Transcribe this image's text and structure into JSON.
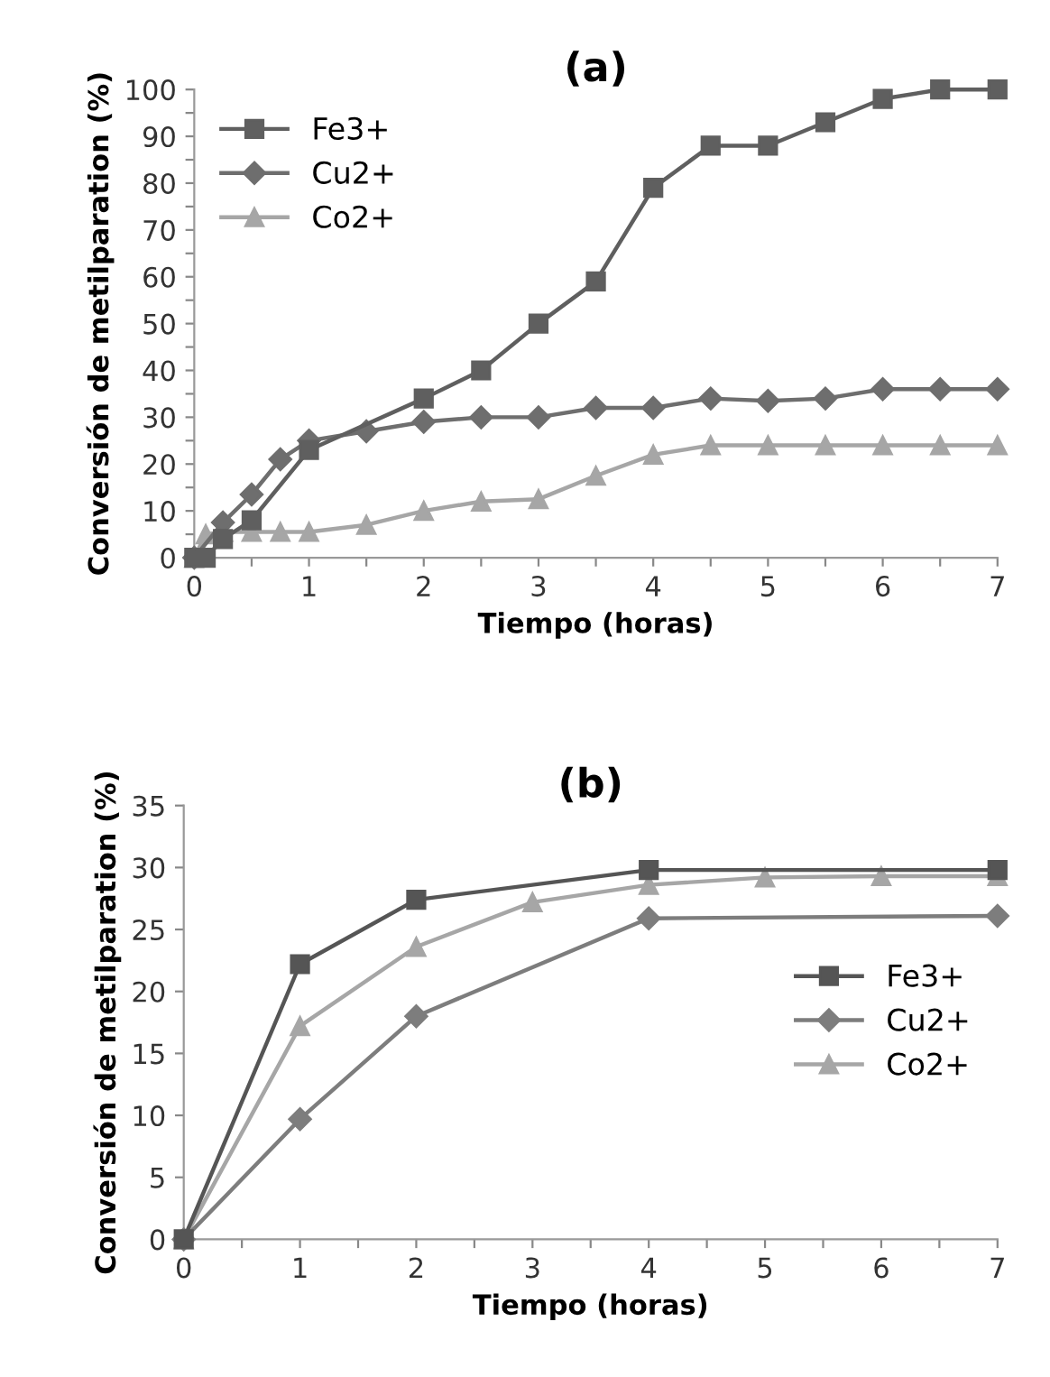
{
  "chart_data": [
    {
      "type": "line",
      "title": "(a)",
      "xlabel": "Tiempo (horas)",
      "ylabel": "Conversión de metilparation (%)",
      "xlim": [
        0,
        7
      ],
      "xticks": [
        0,
        {
          "value": 0.5,
          "label": null
        },
        1,
        {
          "value": 1.5,
          "label": null
        },
        2,
        {
          "value": 2.5,
          "label": null
        },
        3,
        {
          "value": 3.5,
          "label": null
        },
        4,
        {
          "value": 4.5,
          "label": null
        },
        5,
        {
          "value": 5.5,
          "label": null
        },
        6,
        {
          "value": 6.5,
          "label": null
        },
        7
      ],
      "ylim": [
        0,
        100
      ],
      "yticks": [
        0,
        {
          "value": 5,
          "label": null
        },
        10,
        {
          "value": 15,
          "label": null
        },
        20,
        {
          "value": 25,
          "label": null
        },
        30,
        {
          "value": 35,
          "label": null
        },
        40,
        {
          "value": 45,
          "label": null
        },
        50,
        {
          "value": 55,
          "label": null
        },
        60,
        {
          "value": 65,
          "label": null
        },
        70,
        {
          "value": 75,
          "label": null
        },
        80,
        {
          "value": 85,
          "label": null
        },
        90,
        {
          "value": 95,
          "label": null
        },
        100
      ],
      "legend": "top left",
      "grid": false,
      "series": [
        {
          "name": "Fe3+",
          "color": "#5f5f5f",
          "marker": "square",
          "x": [
            0,
            0.1,
            0.25,
            0.5,
            1,
            2,
            2.5,
            3,
            3.5,
            4,
            4.5,
            5,
            5.5,
            6,
            6.5,
            7
          ],
          "values": [
            0,
            0,
            4,
            8,
            23,
            34,
            40,
            50,
            59,
            79,
            88,
            88,
            93,
            98,
            100,
            100
          ]
        },
        {
          "name": "Cu2+",
          "color": "#6e6e6e",
          "marker": "diamond",
          "x": [
            0,
            0.25,
            0.5,
            0.75,
            1,
            1.5,
            2,
            2.5,
            3,
            3.5,
            4,
            4.5,
            5,
            5.5,
            6,
            6.5,
            7
          ],
          "values": [
            0,
            7.5,
            13.5,
            21,
            25,
            27,
            29,
            30,
            30,
            32,
            32,
            34,
            33.5,
            34,
            36,
            36,
            36
          ]
        },
        {
          "name": "Co2+",
          "color": "#a6a6a6",
          "marker": "triangle",
          "x": [
            0,
            0.1,
            0.25,
            0.5,
            0.75,
            1,
            1.5,
            2,
            2.5,
            3,
            3.5,
            4,
            4.5,
            5,
            5.5,
            6,
            6.5,
            7
          ],
          "values": [
            0,
            5,
            5.5,
            5.5,
            5.5,
            5.5,
            7,
            10,
            12,
            12.5,
            17.5,
            22,
            24,
            24,
            24,
            24,
            24,
            24
          ]
        }
      ]
    },
    {
      "type": "line",
      "title": "(b)",
      "xlabel": "Tiempo (horas)",
      "ylabel": "Conversión de metilparation (%)",
      "xlim": [
        0,
        7
      ],
      "xticks": [
        0,
        {
          "value": 0.5,
          "label": null
        },
        1,
        {
          "value": 1.5,
          "label": null
        },
        2,
        {
          "value": 2.5,
          "label": null
        },
        3,
        {
          "value": 3.5,
          "label": null
        },
        4,
        {
          "value": 4.5,
          "label": null
        },
        5,
        {
          "value": 5.5,
          "label": null
        },
        6,
        {
          "value": 6.5,
          "label": null
        },
        7
      ],
      "ylim": [
        0,
        35
      ],
      "yticks": [
        0,
        5,
        10,
        15,
        20,
        25,
        30,
        35
      ],
      "legend": "right",
      "grid": false,
      "series": [
        {
          "name": "Fe3+",
          "color": "#555555",
          "marker": "square",
          "x": [
            0,
            1,
            2,
            4,
            7
          ],
          "values": [
            0,
            22.2,
            27.4,
            29.8,
            29.8
          ]
        },
        {
          "name": "Cu2+",
          "color": "#7d7d7d",
          "marker": "diamond",
          "x": [
            0,
            1,
            2,
            4,
            7
          ],
          "values": [
            0,
            9.7,
            18,
            25.9,
            26.1
          ]
        },
        {
          "name": "Co2+",
          "color": "#a6a6a6",
          "marker": "triangle",
          "x": [
            0,
            1,
            2,
            3,
            4,
            5,
            6,
            7
          ],
          "values": [
            0,
            17.2,
            23.6,
            27.2,
            28.6,
            29.2,
            29.3,
            29.3
          ]
        }
      ]
    }
  ]
}
